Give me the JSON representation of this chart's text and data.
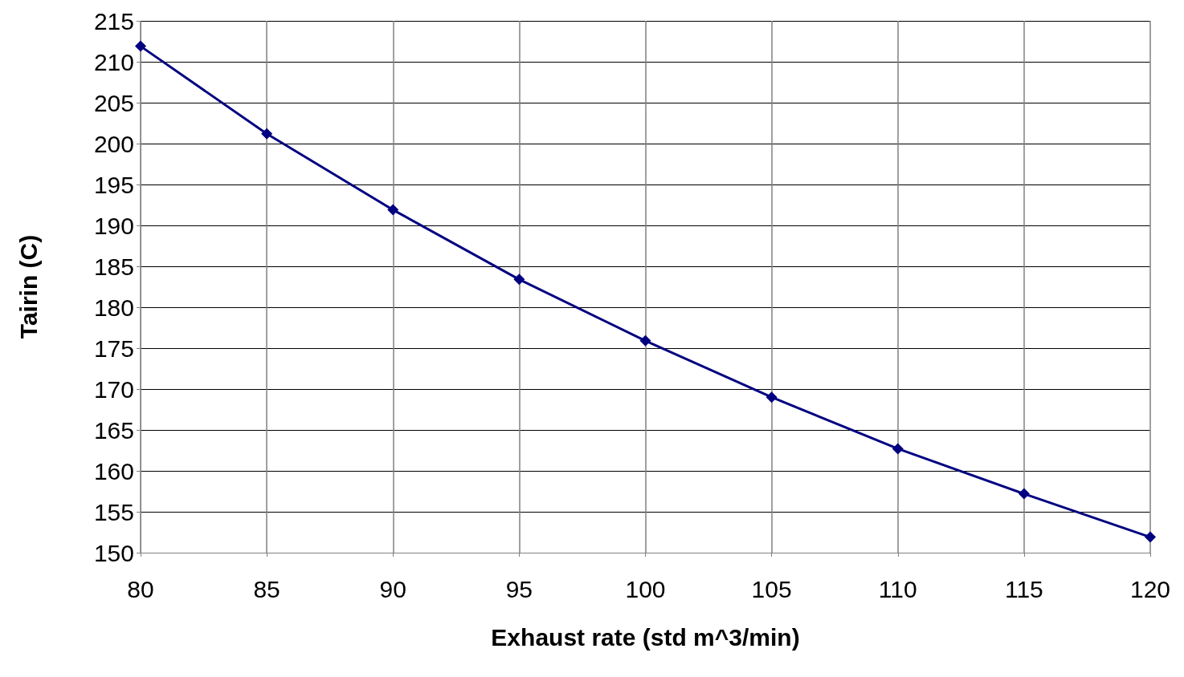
{
  "chart_data": {
    "type": "line",
    "xlabel": "Exhaust rate (std m^3/min)",
    "ylabel": "Tairin (C)",
    "x": [
      80,
      85,
      90,
      95,
      100,
      105,
      110,
      115,
      120
    ],
    "series": [
      {
        "color": "#000080",
        "values": [
          211.9,
          201.2,
          191.9,
          183.4,
          175.9,
          169.0,
          162.7,
          157.2,
          151.9
        ]
      }
    ],
    "xlim": [
      80,
      120
    ],
    "xticks": [
      80,
      85,
      90,
      95,
      100,
      105,
      110,
      115,
      120
    ],
    "ylim": [
      150,
      215
    ],
    "yticks": [
      150,
      155,
      160,
      165,
      170,
      175,
      180,
      185,
      190,
      195,
      200,
      205,
      210,
      215
    ],
    "grid": true,
    "marker": "diamond",
    "line_style": "solid"
  }
}
